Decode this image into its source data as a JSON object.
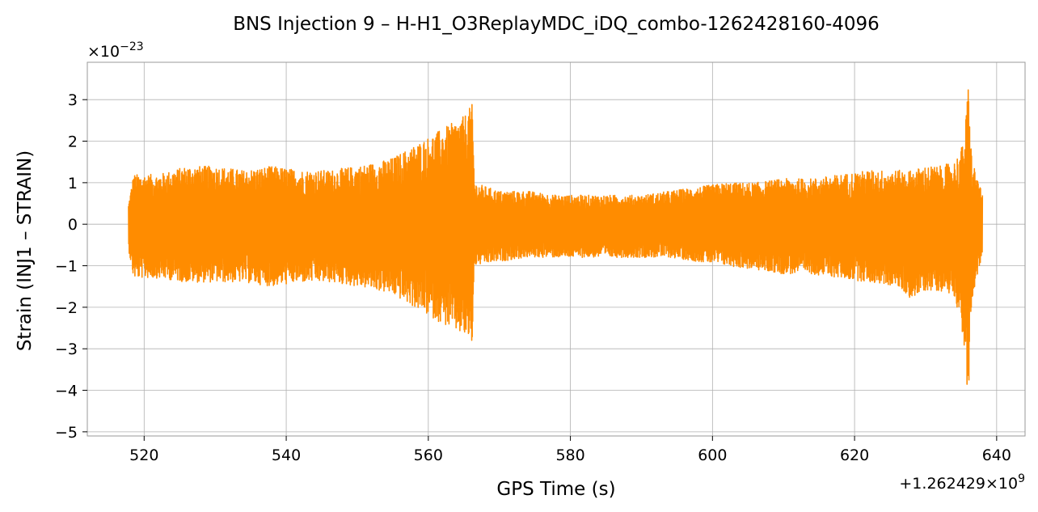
{
  "chart_data": {
    "type": "line",
    "title": "BNS Injection 9 – H-H1_O3ReplayMDC_iDQ_combo-1262428160-4096",
    "xlabel": "GPS Time (s)",
    "ylabel": "Strain (INJ1 – STRAIN)",
    "x_offset_label": "+1.262429×10",
    "x_offset_exponent": "9",
    "y_scale_label": "×10",
    "y_scale_exponent": "−23",
    "xlim": [
      512,
      644
    ],
    "ylim": [
      -5.1,
      3.9
    ],
    "x_ticks": [
      520,
      540,
      560,
      580,
      600,
      620,
      640
    ],
    "x_tick_labels": [
      "520",
      "540",
      "560",
      "580",
      "600",
      "620",
      "640"
    ],
    "y_ticks": [
      -5,
      -4,
      -3,
      -2,
      -1,
      0,
      1,
      2,
      3
    ],
    "y_tick_labels": [
      "−5",
      "−4",
      "−3",
      "−2",
      "−1",
      "0",
      "1",
      "2",
      "3"
    ],
    "grid": true,
    "series": [
      {
        "color": "#ff8c00",
        "envelope": {
          "x": [
            517.8,
            518.5,
            522,
            526,
            530,
            534,
            538,
            542,
            546,
            550,
            553,
            555,
            557,
            559,
            561,
            563,
            565,
            566.2,
            566.5,
            570,
            574,
            578,
            582,
            586,
            590,
            594,
            598,
            602,
            606,
            610,
            614,
            618,
            622,
            626,
            628,
            630,
            632,
            634,
            635,
            635.6,
            636,
            636.5,
            637,
            638
          ],
          "upper": [
            0.5,
            1.2,
            1.2,
            1.4,
            1.4,
            1.3,
            1.4,
            1.3,
            1.3,
            1.4,
            1.5,
            1.6,
            1.8,
            2.0,
            2.2,
            2.4,
            2.6,
            2.9,
            1.0,
            0.8,
            0.8,
            0.7,
            0.7,
            0.7,
            0.7,
            0.8,
            0.9,
            1.0,
            1.0,
            1.1,
            1.1,
            1.2,
            1.3,
            1.3,
            1.3,
            1.4,
            1.4,
            1.5,
            1.8,
            2.4,
            3.4,
            1.6,
            1.3,
            0.7
          ],
          "lower": [
            -0.6,
            -1.3,
            -1.3,
            -1.4,
            -1.4,
            -1.4,
            -1.5,
            -1.4,
            -1.4,
            -1.5,
            -1.6,
            -1.7,
            -1.9,
            -2.1,
            -2.3,
            -2.5,
            -2.7,
            -2.9,
            -1.0,
            -0.9,
            -0.8,
            -0.8,
            -0.8,
            -0.8,
            -0.8,
            -0.8,
            -0.9,
            -1.0,
            -1.1,
            -1.2,
            -1.2,
            -1.3,
            -1.4,
            -1.5,
            -1.8,
            -1.6,
            -1.6,
            -1.7,
            -2.4,
            -3.2,
            -4.6,
            -1.9,
            -1.4,
            -0.8
          ]
        }
      }
    ]
  }
}
